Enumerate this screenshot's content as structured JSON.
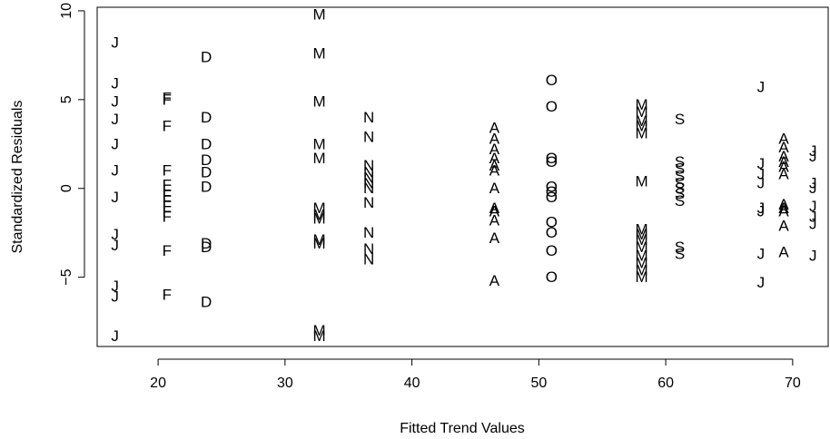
{
  "chart_data": {
    "type": "scatter",
    "title": "",
    "xlabel": "Fitted Trend Values",
    "ylabel": "Standardized Residuals",
    "xlim": [
      15.2,
      72.8
    ],
    "ylim": [
      -8.9,
      10.2
    ],
    "xticks": [
      20,
      30,
      40,
      50,
      60,
      70
    ],
    "yticks": [
      -5,
      0,
      5,
      10
    ],
    "grid": false,
    "legend": "none",
    "marker_style": "letter symbols",
    "groups": [
      {
        "name": "J",
        "x": 16.6,
        "y": [
          8.2,
          5.9,
          4.9,
          3.9,
          2.5,
          1.0,
          -0.5,
          -2.6,
          -3.2,
          -5.5,
          -6.1,
          -8.3
        ]
      },
      {
        "name": "F",
        "x": 20.7,
        "y": [
          5.1,
          5.0,
          3.5,
          1.0,
          0.2,
          -0.1,
          -0.4,
          -0.7,
          -1.0,
          -1.3,
          -1.6,
          -3.5,
          -6.0
        ]
      },
      {
        "name": "D",
        "x": 23.8,
        "y": [
          7.4,
          4.0,
          2.5,
          1.6,
          0.9,
          0.1,
          -3.1,
          -3.3,
          -6.4
        ]
      },
      {
        "name": "M",
        "x": 32.7,
        "y": [
          9.8,
          7.6,
          4.9,
          2.5,
          1.7,
          -1.1,
          -1.5,
          -1.7,
          -2.9,
          -3.1,
          -8.0,
          -8.3
        ]
      },
      {
        "name": "N",
        "x": 36.6,
        "y": [
          4.0,
          2.9,
          1.3,
          0.9,
          0.6,
          0.3,
          0.0,
          -0.8,
          -2.5,
          -3.4,
          -4.0
        ]
      },
      {
        "name": "A",
        "x": 46.5,
        "y": [
          3.4,
          2.8,
          2.2,
          1.7,
          1.3,
          1.0,
          0.0,
          -1.1,
          -1.3,
          -1.8,
          -2.8,
          -5.2
        ]
      },
      {
        "name": "O",
        "x": 51.0,
        "y": [
          6.1,
          4.6,
          1.7,
          1.5,
          0.1,
          -0.2,
          -0.5,
          -1.9,
          -2.5,
          -3.5,
          -5.0
        ]
      },
      {
        "name": "M",
        "x": 58.1,
        "y": [
          4.7,
          4.3,
          3.8,
          3.5,
          3.1,
          0.4,
          -2.3,
          -2.6,
          -2.9,
          -3.3,
          -3.8,
          -4.2,
          -4.6,
          -5.0
        ]
      },
      {
        "name": "S",
        "x": 61.1,
        "y": [
          3.9,
          1.5,
          1.1,
          0.7,
          0.3,
          0.0,
          -0.3,
          -0.7,
          -3.3,
          -3.7
        ]
      },
      {
        "name": "J",
        "x": 67.5,
        "y": [
          5.7,
          1.4,
          0.8,
          0.3,
          -1.1,
          -1.3,
          -3.7,
          -5.3
        ]
      },
      {
        "name": "A",
        "x": 69.3,
        "y": [
          2.8,
          2.3,
          1.8,
          1.5,
          1.2,
          0.8,
          -0.9,
          -1.1,
          -1.3,
          -2.1,
          -3.6
        ]
      },
      {
        "name": "J",
        "x": 71.6,
        "y": [
          2.1,
          1.8,
          0.3,
          0.0,
          -1.0,
          -1.6,
          -2.0,
          -3.8
        ]
      }
    ]
  }
}
